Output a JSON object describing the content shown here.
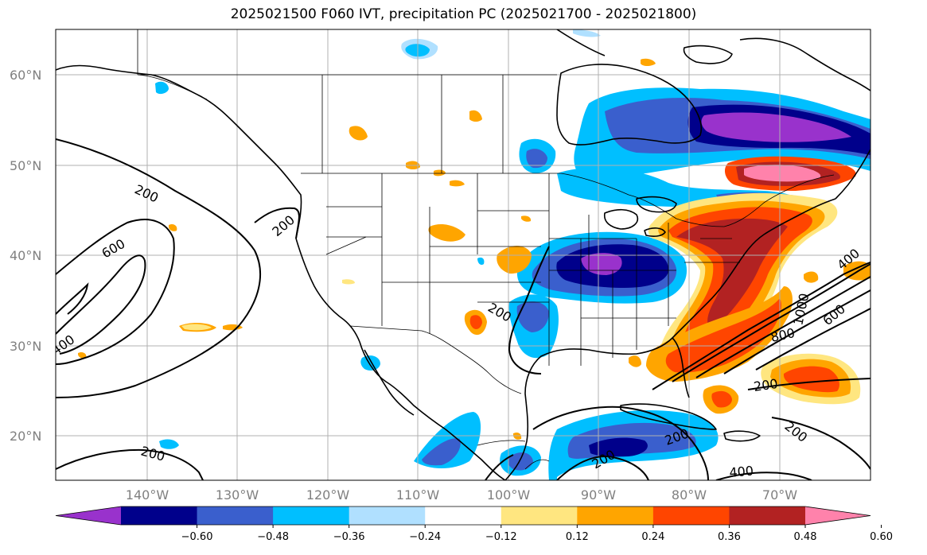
{
  "title": "2025021500 F060 IVT, precipitation PC (2025021700 - 2025021800)",
  "lat_labels": [
    "60°N",
    "50°N",
    "40°N",
    "30°N",
    "20°N"
  ],
  "lon_labels": [
    "140°W",
    "130°W",
    "120°W",
    "110°W",
    "100°W",
    "90°W",
    "80°W",
    "70°W"
  ],
  "colorbar": {
    "tick_labels": [
      "−0.60",
      "−0.48",
      "−0.36",
      "−0.24",
      "−0.12",
      "0.12",
      "0.24",
      "0.36",
      "0.48",
      "0.60"
    ],
    "colors": [
      "#9932cc",
      "#00008b",
      "#3a5fcd",
      "#00bfff",
      "#b0e0ff",
      "#ffffff",
      "#ffe680",
      "#ffa500",
      "#ff4500",
      "#b22222",
      "#ff82ab"
    ]
  },
  "ivt_contour_labels": [
    "200",
    "200",
    "600",
    "400",
    "200",
    "200",
    "200",
    "400",
    "600",
    "800",
    "1000",
    "200",
    "200",
    "400",
    "200"
  ]
}
